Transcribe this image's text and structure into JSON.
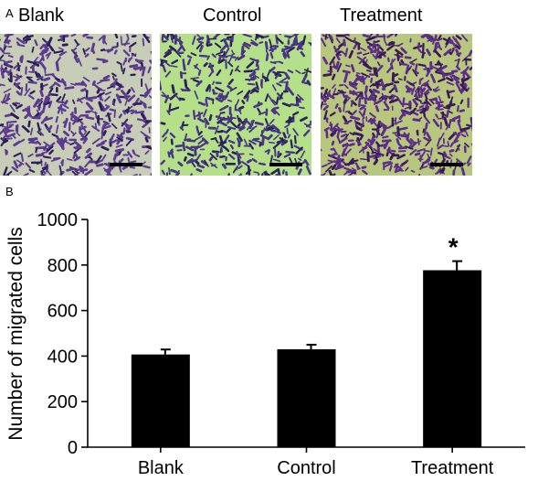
{
  "panel_a": {
    "letter": "A",
    "images": [
      {
        "label": "Blank"
      },
      {
        "label": "Control"
      },
      {
        "label": "Treatment"
      }
    ]
  },
  "panel_b": {
    "letter": "B"
  },
  "colors": {
    "bar": "#000000",
    "stain_purple": "#5b2d8e",
    "background_green": "#b9e486"
  },
  "chart_data": {
    "type": "bar",
    "categories": [
      "Blank",
      "Control",
      "Treatment"
    ],
    "values": [
      407,
      430,
      777
    ],
    "errors": [
      22,
      20,
      40
    ],
    "significance": [
      "",
      "",
      "*"
    ],
    "title": "",
    "xlabel": "",
    "ylabel": "Number of migrated cells",
    "ylim": [
      0,
      1000
    ],
    "yticks": [
      0,
      200,
      400,
      600,
      800,
      1000
    ]
  }
}
